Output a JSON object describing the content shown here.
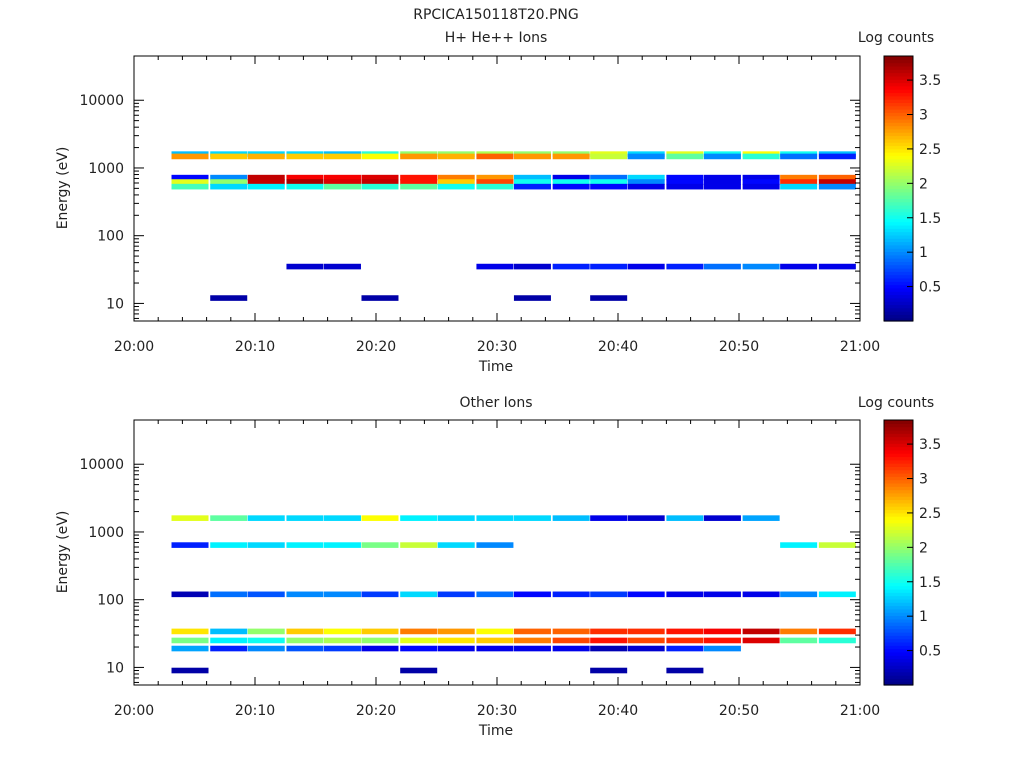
{
  "figure_title": "RPCICA150118T20.PNG",
  "colorbar": {
    "label": "Log counts",
    "range": [
      0.0,
      3.85
    ],
    "ticks": [
      "0.5",
      "1",
      "1.5",
      "2",
      "2.5",
      "3",
      "3.5"
    ],
    "tick_values": [
      0.5,
      1,
      1.5,
      2,
      2.5,
      3,
      3.5
    ],
    "colormap": "jet"
  },
  "chart_data": [
    {
      "type": "heatmap",
      "title": "H+ He++ Ions",
      "xlabel": "Time",
      "ylabel": "Energy (eV)",
      "xlim": [
        "20:00",
        "21:00"
      ],
      "ylim": [
        5.5,
        45000
      ],
      "yscale": "log",
      "x_ticks": [
        "20:00",
        "20:10",
        "20:20",
        "20:30",
        "20:40",
        "20:50",
        "21:00"
      ],
      "y_ticks": [
        "10",
        "100",
        "1000",
        "10000"
      ],
      "time_bins_min": [
        3.1,
        6.3,
        9.4,
        12.6,
        15.7,
        18.8,
        22.0,
        25.1,
        28.3,
        31.4,
        34.6,
        37.7,
        40.8,
        44.0,
        47.1,
        50.3,
        53.4,
        56.6
      ],
      "rows": [
        {
          "energy_ev": 1600,
          "values": [
            1.2,
            1.3,
            1.3,
            1.3,
            1.2,
            1.6,
            2.0,
            2.0,
            2.1,
            2.0,
            2.0,
            2.3,
            1.3,
            2.3,
            1.5,
            2.4,
            1.5,
            1.2
          ]
        },
        {
          "energy_ev": 1480,
          "values": [
            2.8,
            2.6,
            2.7,
            2.6,
            2.6,
            2.4,
            2.8,
            2.7,
            3.0,
            2.8,
            2.8,
            2.2,
            1.0,
            1.8,
            1.0,
            1.6,
            0.9,
            0.6
          ]
        },
        {
          "energy_ev": 720,
          "values": [
            0.5,
            1.0,
            3.6,
            3.4,
            3.4,
            3.5,
            3.3,
            2.9,
            2.8,
            1.2,
            0.4,
            0.9,
            1.3,
            0.5,
            0.4,
            0.4,
            2.9,
            3.0
          ]
        },
        {
          "energy_ev": 620,
          "values": [
            2.3,
            2.0,
            3.6,
            3.7,
            3.5,
            3.6,
            3.3,
            2.6,
            3.1,
            1.5,
            1.5,
            1.5,
            1.0,
            0.5,
            0.4,
            0.5,
            3.2,
            3.6
          ]
        },
        {
          "energy_ev": 530,
          "values": [
            1.7,
            1.3,
            1.4,
            1.5,
            1.8,
            1.6,
            1.8,
            1.5,
            1.6,
            0.6,
            0.5,
            0.5,
            0.4,
            0.4,
            0.4,
            0.4,
            1.3,
            1.0
          ]
        },
        {
          "energy_ev": 35,
          "values": [
            0.0,
            0.0,
            0.0,
            0.3,
            0.3,
            0.0,
            0.0,
            0.0,
            0.4,
            0.3,
            0.6,
            0.6,
            0.4,
            0.6,
            0.9,
            1.0,
            0.4,
            0.4
          ]
        },
        {
          "energy_ev": 12,
          "values": [
            0.0,
            0.15,
            0.0,
            0.0,
            0.0,
            0.15,
            0.0,
            0.0,
            0.0,
            0.15,
            0.0,
            0.15,
            0.0,
            0.0,
            0.0,
            0.0,
            0.0,
            0.0
          ]
        }
      ]
    },
    {
      "type": "heatmap",
      "title": "Other Ions",
      "xlabel": "Time",
      "ylabel": "Energy (eV)",
      "xlim": [
        "20:00",
        "21:00"
      ],
      "ylim": [
        5.5,
        45000
      ],
      "yscale": "log",
      "x_ticks": [
        "20:00",
        "20:10",
        "20:20",
        "20:30",
        "20:40",
        "20:50",
        "21:00"
      ],
      "y_ticks": [
        "10",
        "100",
        "1000",
        "10000"
      ],
      "time_bins_min": [
        3.1,
        6.3,
        9.4,
        12.6,
        15.7,
        18.8,
        22.0,
        25.1,
        28.3,
        31.4,
        34.6,
        37.7,
        40.8,
        44.0,
        47.1,
        50.3,
        53.4,
        56.6
      ],
      "rows": [
        {
          "energy_ev": 1600,
          "values": [
            2.3,
            1.8,
            1.3,
            1.3,
            1.3,
            2.4,
            1.4,
            1.3,
            1.3,
            1.3,
            1.2,
            0.4,
            0.3,
            1.2,
            0.3,
            1.1,
            0.0,
            0.0
          ]
        },
        {
          "energy_ev": 640,
          "values": [
            0.6,
            1.4,
            1.3,
            1.4,
            1.4,
            1.9,
            2.2,
            1.3,
            1.0,
            0.0,
            0.0,
            0.0,
            0.0,
            0.0,
            0.0,
            0.0,
            1.4,
            2.2
          ]
        },
        {
          "energy_ev": 120,
          "values": [
            0.2,
            0.9,
            0.8,
            1.0,
            1.0,
            0.7,
            1.3,
            0.7,
            0.9,
            0.5,
            0.6,
            0.7,
            0.5,
            0.4,
            0.4,
            0.4,
            1.0,
            1.4
          ]
        },
        {
          "energy_ev": 34,
          "values": [
            2.5,
            1.2,
            2.0,
            2.6,
            2.4,
            2.6,
            2.9,
            2.8,
            2.4,
            3.0,
            3.0,
            3.2,
            3.2,
            3.3,
            3.4,
            3.6,
            2.9,
            3.2
          ]
        },
        {
          "energy_ev": 25,
          "values": [
            1.9,
            1.4,
            1.5,
            2.0,
            2.1,
            2.0,
            2.3,
            2.5,
            2.6,
            2.9,
            3.1,
            3.3,
            3.1,
            3.2,
            3.3,
            3.5,
            1.8,
            1.6
          ]
        },
        {
          "energy_ev": 19,
          "values": [
            1.1,
            0.6,
            1.0,
            0.8,
            0.7,
            0.4,
            0.5,
            0.4,
            0.4,
            0.4,
            0.4,
            0.2,
            0.3,
            0.6,
            1.0,
            0.0,
            0.0,
            0.0
          ]
        },
        {
          "energy_ev": 9,
          "values": [
            0.15,
            0.0,
            0.0,
            0.0,
            0.0,
            0.0,
            0.15,
            0.0,
            0.0,
            0.0,
            0.0,
            0.15,
            0.0,
            0.15,
            0.0,
            0.0,
            0.0,
            0.0
          ]
        }
      ]
    }
  ]
}
